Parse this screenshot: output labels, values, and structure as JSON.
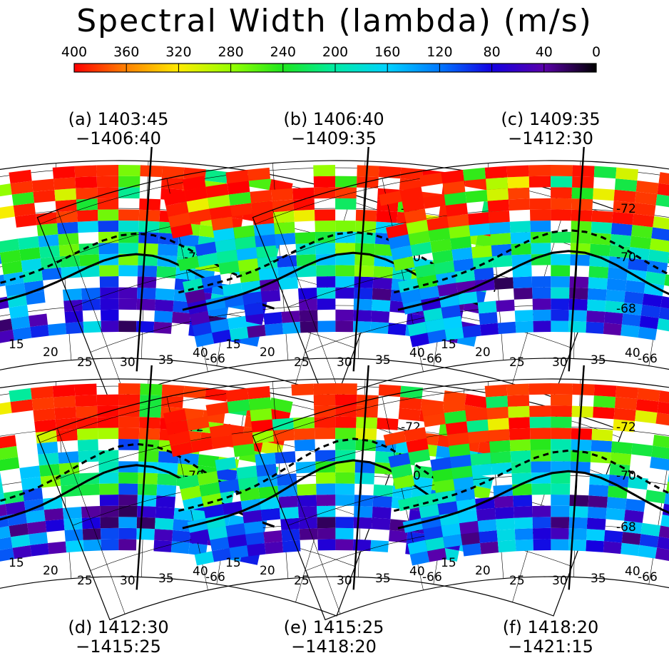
{
  "title": "Spectral Width (lambda) (m/s)",
  "colorbar": {
    "ticks": [
      "400",
      "360",
      "320",
      "280",
      "240",
      "200",
      "160",
      "120",
      "80",
      "40",
      "0"
    ],
    "range": [
      400,
      0
    ],
    "colormap": "rainbow-red-to-black"
  },
  "panels": [
    {
      "id": "a",
      "label_line1": "(a) 1403:45",
      "label_line2": "−1406:40"
    },
    {
      "id": "b",
      "label_line1": "(b) 1406:40",
      "label_line2": "−1409:35"
    },
    {
      "id": "c",
      "label_line1": "(c) 1409:35",
      "label_line2": "−1412:30"
    },
    {
      "id": "d",
      "label_line1": "(d) 1412:30",
      "label_line2": "−1415:25"
    },
    {
      "id": "e",
      "label_line1": "(e) 1415:25",
      "label_line2": "−1418:20"
    },
    {
      "id": "f",
      "label_line1": "(f) 1418:20",
      "label_line2": "−1421:15"
    }
  ],
  "chart_data": {
    "type": "heatmap",
    "title": "Spectral Width (lambda) (m/s)",
    "colorbar_range": [
      400,
      0
    ],
    "longitude_labels": [
      "15",
      "20",
      "25",
      "30",
      "35",
      "40"
    ],
    "latitude_labels": [
      "-66",
      "-68",
      "-70",
      "-72"
    ],
    "grid": true
  }
}
